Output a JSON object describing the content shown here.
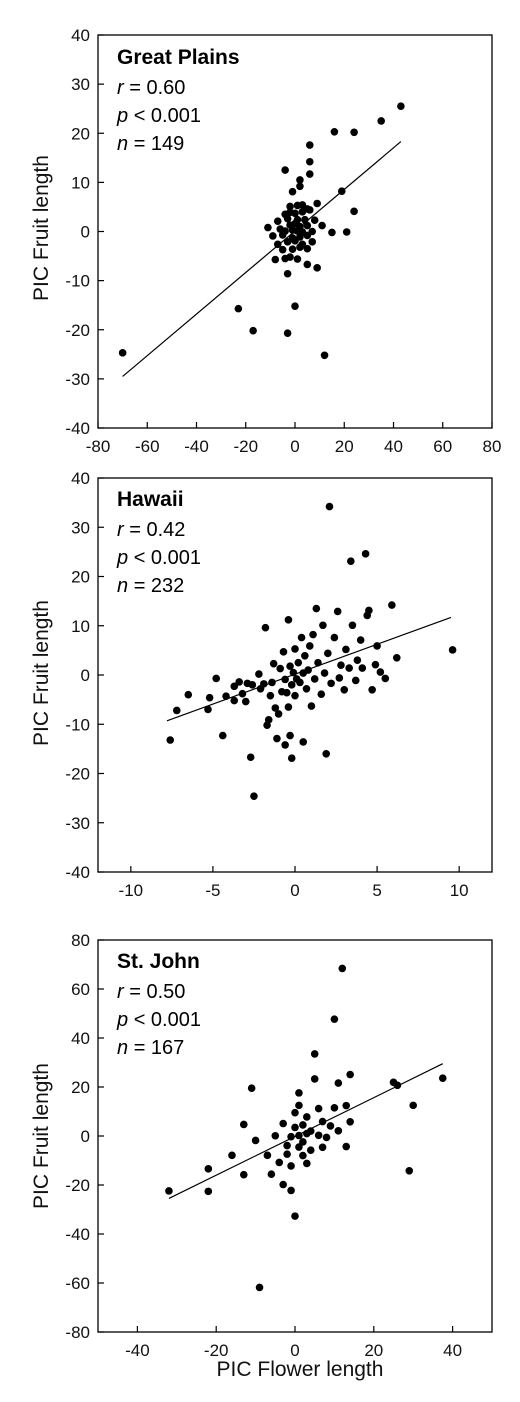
{
  "figure": {
    "xlabel": "PIC Flower length"
  },
  "chart_data": [
    {
      "type": "scatter",
      "title": "Great Plains",
      "stats": {
        "r_label": "r",
        "r_value": "= 0.60",
        "p_label": "p",
        "p_value": "< 0.001",
        "n_label": "n",
        "n_value": "= 149"
      },
      "ylabel": "PIC Fruit length",
      "xlim": [
        -80,
        80
      ],
      "ylim": [
        -40,
        40
      ],
      "xticks": [
        -80,
        -60,
        -40,
        -20,
        0,
        20,
        40,
        60,
        80
      ],
      "yticks": [
        -40,
        -30,
        -20,
        -10,
        0,
        10,
        20,
        30,
        40
      ],
      "fit_line": {
        "x": [
          -70,
          43
        ],
        "y": [
          -29.5,
          18.3
        ]
      },
      "points": [
        [
          -70,
          -24.7
        ],
        [
          -23,
          -15.7
        ],
        [
          -17,
          -20.2
        ],
        [
          -3,
          -20.7
        ],
        [
          0,
          -15.2
        ],
        [
          12,
          -25.2
        ],
        [
          43,
          25.5
        ],
        [
          35,
          22.5
        ],
        [
          24,
          20.2
        ],
        [
          16,
          20.3
        ],
        [
          6,
          17.6
        ],
        [
          6,
          14.2
        ],
        [
          -4,
          12.5
        ],
        [
          2,
          10.5
        ],
        [
          6,
          11.7
        ],
        [
          2,
          9.2
        ],
        [
          19,
          8.2
        ],
        [
          -1,
          8.1
        ],
        [
          24,
          4.1
        ],
        [
          5,
          4.6
        ],
        [
          9,
          5.7
        ],
        [
          -2,
          5.1
        ],
        [
          1,
          5.3
        ],
        [
          3,
          5.4
        ],
        [
          -4,
          3.5
        ],
        [
          -2,
          3.9
        ],
        [
          0,
          3.7
        ],
        [
          3,
          4.0
        ],
        [
          6,
          4.4
        ],
        [
          -7,
          2.1
        ],
        [
          -3,
          2.6
        ],
        [
          1,
          2.4
        ],
        [
          4,
          2.4
        ],
        [
          8,
          2.3
        ],
        [
          -11,
          0.8
        ],
        [
          -6,
          0.5
        ],
        [
          -2,
          1.3
        ],
        [
          0,
          1.6
        ],
        [
          2,
          1.0
        ],
        [
          5,
          1.2
        ],
        [
          11,
          1.2
        ],
        [
          -9,
          -0.9
        ],
        [
          -4,
          0.1
        ],
        [
          -1,
          0.3
        ],
        [
          1,
          0.1
        ],
        [
          3,
          -0.1
        ],
        [
          7,
          0.0
        ],
        [
          15,
          -0.2
        ],
        [
          21,
          -0.1
        ],
        [
          -5,
          -0.7
        ],
        [
          -1,
          -1.3
        ],
        [
          2,
          -1.1
        ],
        [
          5,
          -0.8
        ],
        [
          -7,
          -2.6
        ],
        [
          -3,
          -2.1
        ],
        [
          0,
          -1.9
        ],
        [
          3,
          -2.6
        ],
        [
          7,
          -2.1
        ],
        [
          -5,
          -3.7
        ],
        [
          -1,
          -3.6
        ],
        [
          2,
          -3.2
        ],
        [
          5,
          -3.5
        ],
        [
          -8,
          -5.7
        ],
        [
          -4,
          -5.5
        ],
        [
          -2,
          -5.2
        ],
        [
          1,
          -5.6
        ],
        [
          5,
          -6.7
        ],
        [
          9,
          -7.4
        ],
        [
          -3,
          -8.6
        ]
      ]
    },
    {
      "type": "scatter",
      "title": "Hawaii",
      "stats": {
        "r_label": "r",
        "r_value": "= 0.42",
        "p_label": "p",
        "p_value": "< 0.001",
        "n_label": "n",
        "n_value": "= 232"
      },
      "ylabel": "PIC Fruit length",
      "xlim": [
        -12,
        12
      ],
      "ylim": [
        -40,
        40
      ],
      "xticks": [
        -10,
        -5,
        0,
        5,
        10
      ],
      "yticks": [
        -40,
        -30,
        -20,
        -10,
        0,
        10,
        20,
        30,
        40
      ],
      "fit_line": {
        "x": [
          -7.8,
          9.5
        ],
        "y": [
          -9.3,
          11.7
        ]
      },
      "points": [
        [
          -7.6,
          -13.2
        ],
        [
          -7.2,
          -7.2
        ],
        [
          -6.5,
          -4.0
        ],
        [
          -5.3,
          -7.0
        ],
        [
          -5.2,
          -4.6
        ],
        [
          -4.8,
          -0.7
        ],
        [
          -4.4,
          -12.3
        ],
        [
          -4.2,
          -4.3
        ],
        [
          -3.7,
          -2.3
        ],
        [
          -3.7,
          -5.2
        ],
        [
          -3.4,
          -1.4
        ],
        [
          -3.2,
          -3.8
        ],
        [
          -3.0,
          -5.4
        ],
        [
          -2.9,
          -1.7
        ],
        [
          -2.7,
          -16.7
        ],
        [
          -2.6,
          -2.0
        ],
        [
          -2.5,
          -24.6
        ],
        [
          -2.2,
          0.2
        ],
        [
          -2.1,
          -2.8
        ],
        [
          -1.9,
          -1.8
        ],
        [
          -1.8,
          9.6
        ],
        [
          -1.7,
          -10.2
        ],
        [
          -1.6,
          -9.1
        ],
        [
          -1.5,
          -4.2
        ],
        [
          -1.4,
          -1.5
        ],
        [
          -1.3,
          2.3
        ],
        [
          -1.2,
          -6.7
        ],
        [
          -1.1,
          -12.9
        ],
        [
          -1.0,
          -7.9
        ],
        [
          -0.9,
          1.3
        ],
        [
          -0.8,
          -3.4
        ],
        [
          -0.7,
          4.7
        ],
        [
          -0.6,
          -14.2
        ],
        [
          -0.6,
          -0.9
        ],
        [
          -0.5,
          -3.6
        ],
        [
          -0.4,
          11.2
        ],
        [
          -0.4,
          -6.5
        ],
        [
          -0.3,
          -12.3
        ],
        [
          -0.3,
          1.8
        ],
        [
          -0.2,
          -16.9
        ],
        [
          -0.2,
          -2.0
        ],
        [
          -0.1,
          0.5
        ],
        [
          0.0,
          -4.2
        ],
        [
          0.0,
          5.3
        ],
        [
          0.1,
          -0.8
        ],
        [
          0.2,
          2.5
        ],
        [
          0.3,
          -1.5
        ],
        [
          0.4,
          7.6
        ],
        [
          0.5,
          -13.6
        ],
        [
          0.5,
          0.4
        ],
        [
          0.6,
          3.9
        ],
        [
          0.7,
          -2.8
        ],
        [
          0.8,
          1.0
        ],
        [
          0.9,
          5.9
        ],
        [
          1.0,
          -6.3
        ],
        [
          1.1,
          8.2
        ],
        [
          1.2,
          -0.8
        ],
        [
          1.3,
          13.5
        ],
        [
          1.4,
          2.5
        ],
        [
          1.6,
          -3.9
        ],
        [
          1.7,
          10.1
        ],
        [
          1.8,
          0.4
        ],
        [
          1.9,
          -16.0
        ],
        [
          2.0,
          4.4
        ],
        [
          2.1,
          34.2
        ],
        [
          2.2,
          -1.7
        ],
        [
          2.4,
          7.6
        ],
        [
          2.6,
          12.9
        ],
        [
          2.7,
          -0.6
        ],
        [
          2.8,
          2.0
        ],
        [
          3.0,
          -3.0
        ],
        [
          3.1,
          5.2
        ],
        [
          3.3,
          1.4
        ],
        [
          3.4,
          23.1
        ],
        [
          3.5,
          10.1
        ],
        [
          3.7,
          -1.1
        ],
        [
          3.8,
          3.0
        ],
        [
          4.0,
          7.1
        ],
        [
          4.1,
          1.4
        ],
        [
          4.3,
          24.6
        ],
        [
          4.4,
          12.1
        ],
        [
          4.5,
          13.1
        ],
        [
          4.7,
          -3.0
        ],
        [
          4.9,
          2.1
        ],
        [
          5.0,
          5.9
        ],
        [
          5.2,
          0.6
        ],
        [
          5.5,
          -0.7
        ],
        [
          5.9,
          14.2
        ],
        [
          6.2,
          3.5
        ],
        [
          9.6,
          5.1
        ]
      ]
    },
    {
      "type": "scatter",
      "title": "St. John",
      "stats": {
        "r_label": "r",
        "r_value": "= 0.50",
        "p_label": "p",
        "p_value": "< 0.001",
        "n_label": "n",
        "n_value": "= 167"
      },
      "ylabel": "PIC Fruit length",
      "xlabel": "PIC Flower length",
      "xlim": [
        -50,
        50
      ],
      "ylim": [
        -80,
        80
      ],
      "xticks": [
        -40,
        -20,
        0,
        20,
        40
      ],
      "yticks": [
        -80,
        -60,
        -40,
        -20,
        0,
        20,
        40,
        60,
        80
      ],
      "fit_line": {
        "x": [
          -32,
          37.5
        ],
        "y": [
          -25.5,
          29.5
        ]
      },
      "points": [
        [
          -32,
          -22.4
        ],
        [
          -22,
          -13.4
        ],
        [
          -22,
          -22.6
        ],
        [
          -16,
          -7.9
        ],
        [
          -13,
          -15.8
        ],
        [
          -13,
          4.7
        ],
        [
          -11,
          19.5
        ],
        [
          -10,
          -1.8
        ],
        [
          -9,
          -61.8
        ],
        [
          -7,
          -7.9
        ],
        [
          -6,
          -15.6
        ],
        [
          -5,
          0.1
        ],
        [
          -4,
          -10.8
        ],
        [
          -3,
          5.1
        ],
        [
          -3,
          -19.8
        ],
        [
          -2,
          -3.9
        ],
        [
          -2,
          -7.4
        ],
        [
          -1,
          -22.2
        ],
        [
          -1,
          -0.3
        ],
        [
          -1,
          -12.2
        ],
        [
          0,
          9.5
        ],
        [
          0,
          -32.7
        ],
        [
          0,
          3.5
        ],
        [
          1,
          0.2
        ],
        [
          1,
          -4.5
        ],
        [
          1,
          12.5
        ],
        [
          1,
          17.6
        ],
        [
          2,
          -8.0
        ],
        [
          2,
          -2.4
        ],
        [
          2,
          4.5
        ],
        [
          3,
          7.8
        ],
        [
          3,
          1.0
        ],
        [
          3,
          -11.2
        ],
        [
          4,
          -5.8
        ],
        [
          4,
          2.0
        ],
        [
          5,
          23.3
        ],
        [
          5,
          33.5
        ],
        [
          6,
          11.2
        ],
        [
          6,
          0.3
        ],
        [
          7,
          5.9
        ],
        [
          7,
          -4.6
        ],
        [
          8,
          -0.6
        ],
        [
          9,
          4.1
        ],
        [
          10,
          11.5
        ],
        [
          10,
          47.7
        ],
        [
          11,
          2.1
        ],
        [
          11,
          21.6
        ],
        [
          12,
          68.4
        ],
        [
          13,
          12.4
        ],
        [
          13,
          -4.3
        ],
        [
          14,
          25.1
        ],
        [
          14,
          5.8
        ],
        [
          25,
          21.9
        ],
        [
          26,
          20.7
        ],
        [
          29,
          -14.2
        ],
        [
          30,
          12.5
        ],
        [
          37.5,
          23.6
        ]
      ]
    }
  ]
}
